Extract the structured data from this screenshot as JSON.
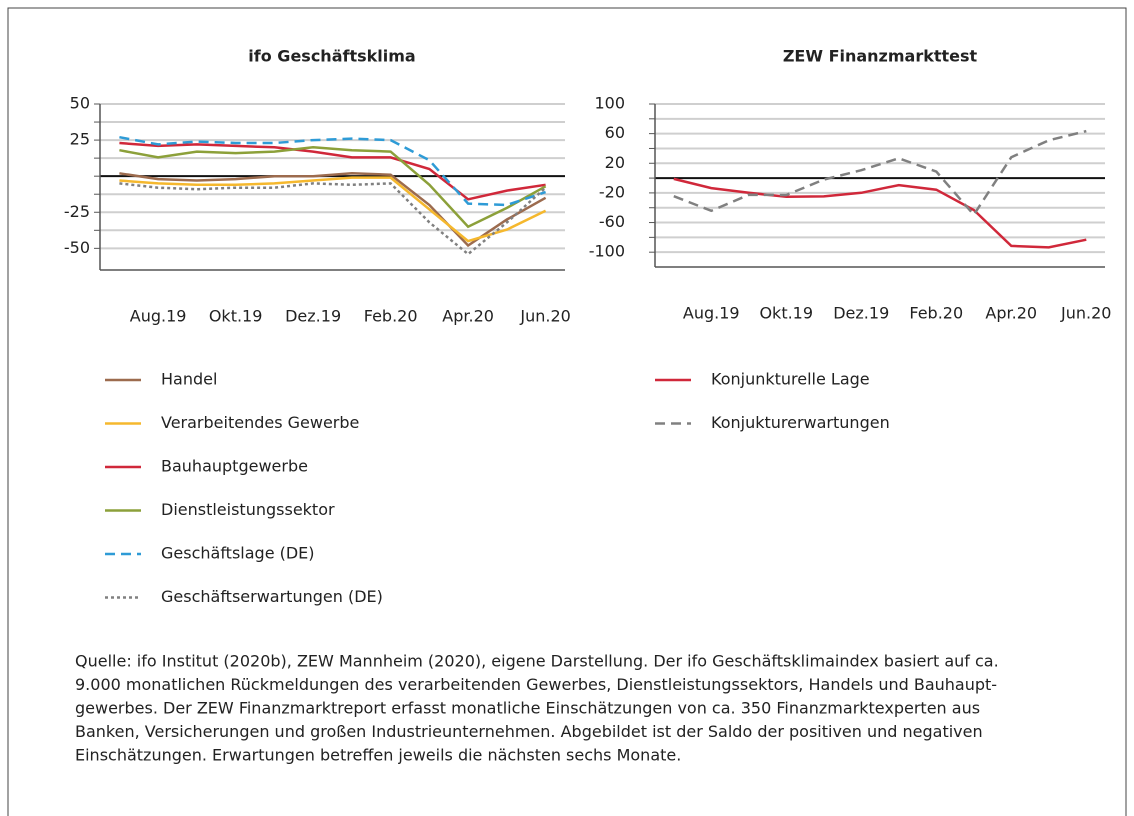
{
  "chart_data": [
    {
      "type": "line",
      "title": "ifo Geschäftsklima",
      "categories": [
        null,
        "Aug.19",
        null,
        "Okt.19",
        null,
        "Dez.19",
        null,
        "Feb.20",
        null,
        "Apr.20",
        null,
        "Jun.20"
      ],
      "ylim": [
        -65,
        50
      ],
      "yticks": [
        -50,
        -25,
        25,
        50
      ],
      "minor_yticks": [
        -37.5,
        -12.5,
        0,
        12.5,
        37.5
      ],
      "grid": true,
      "zero_line": true,
      "series": [
        {
          "name": "Handel",
          "color": "#9c6b4e",
          "style": "solid",
          "values": [
            2,
            -2,
            -3,
            -2,
            0,
            0,
            2,
            1,
            -20,
            -48,
            -30,
            -15
          ]
        },
        {
          "name": "Verarbeitendes Gewerbe",
          "color": "#f5b82e",
          "style": "solid",
          "values": [
            -3,
            -5,
            -6,
            -6,
            -5,
            -3,
            -1,
            -1,
            -23,
            -45,
            -37,
            -24
          ]
        },
        {
          "name": "Bauhauptgewerbe",
          "color": "#d0283a",
          "style": "solid",
          "values": [
            23,
            21,
            22,
            21,
            20,
            17,
            13,
            13,
            5,
            -16,
            -10,
            -6
          ]
        },
        {
          "name": "Dienstleistungssektor",
          "color": "#8ca03a",
          "style": "solid",
          "values": [
            18,
            13,
            17,
            16,
            17,
            20,
            18,
            17,
            -6,
            -35,
            -22,
            -7
          ]
        },
        {
          "name": "Geschäftslage (DE)",
          "color": "#2e9bd6",
          "style": "dashed",
          "values": [
            27,
            22,
            24,
            23,
            23,
            25,
            26,
            25,
            11,
            -19,
            -20,
            -11
          ]
        },
        {
          "name": "Geschäftserwartungen (DE)",
          "color": "#808080",
          "style": "dotted",
          "values": [
            -5,
            -8,
            -9,
            -8,
            -8,
            -5,
            -6,
            -5,
            -32,
            -54,
            -32,
            -8
          ]
        }
      ]
    },
    {
      "type": "line",
      "title": "ZEW Finanzmarkttest",
      "categories": [
        null,
        "Aug.19",
        null,
        "Okt.19",
        null,
        "Dez.19",
        null,
        "Feb.20",
        null,
        "Apr.20",
        null,
        "Jun.20"
      ],
      "ylim": [
        -120,
        100
      ],
      "yticks": [
        -100,
        -60,
        -20,
        20,
        60,
        100
      ],
      "minor_yticks": [
        -80,
        -40,
        0,
        40,
        80
      ],
      "grid": true,
      "zero_line": true,
      "series": [
        {
          "name": "Konjunkturelle Lage",
          "color": "#d0283a",
          "style": "solid",
          "values": [
            -1.1,
            -13.5,
            -19.9,
            -25.3,
            -24.7,
            -19.9,
            -9.5,
            -15.7,
            -43.1,
            -91.5,
            -93.5,
            -83.1
          ]
        },
        {
          "name": "Konjukturerwartungen",
          "color": "#808080",
          "style": "dashed",
          "values": [
            -24.5,
            -44.1,
            -22.5,
            -22.8,
            -2.1,
            10.7,
            26.7,
            8.7,
            -49.5,
            28.2,
            51.0,
            63.4
          ]
        }
      ]
    }
  ],
  "footnote_lines": [
    "Quelle: ifo Institut (2020b), ZEW Mannheim (2020), eigene Darstellung. Der ifo Geschäftsklimaindex basiert auf ca.",
    "9.000 monatlichen Rückmeldungen des verarbeitenden Gewerbes, Dienstleistungssektors, Handels und Bauhaupt-",
    "gewerbes. Der ZEW Finanzmarktreport erfasst monatliche Einschätzungen von ca. 350 Finanzmarktexperten aus",
    "Banken, Versicherungen und großen Industrieunternehmen. Abgebildet ist der Saldo der positiven und negativen",
    "Einschätzungen. Erwartungen betreffen jeweils die nächsten sechs Monate."
  ]
}
